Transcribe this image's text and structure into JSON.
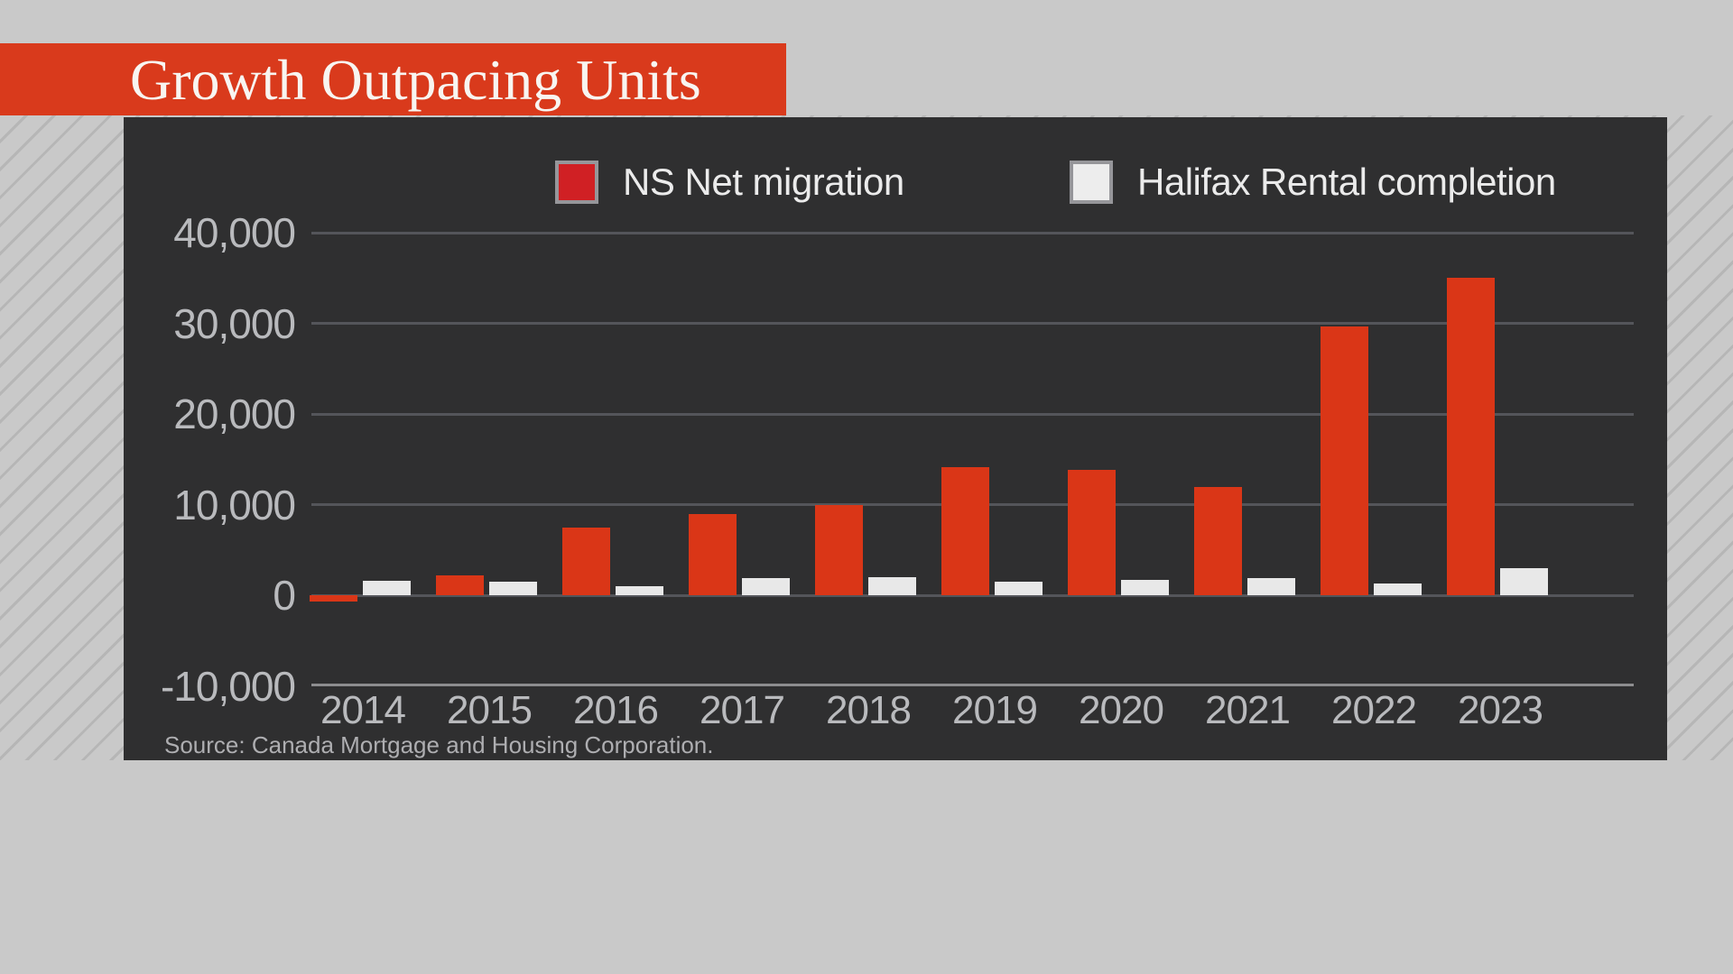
{
  "banner": {
    "title": "Growth Outpacing Units",
    "background_color": "#d93a1c",
    "text_color": "#f8f5f1"
  },
  "legend": {
    "items": [
      {
        "label": "NS Net migration",
        "swatch_color": "#d02024",
        "swatch_border": "#96969a"
      },
      {
        "label": "Halifax Rental completion",
        "swatch_color": "#ededed",
        "swatch_border": "#96969a"
      }
    ]
  },
  "source": "Source: Canada Mortgage and Housing Corporation.",
  "colors": {
    "page_background": "#c9c9c9",
    "hatch_line": "#b6b6b6",
    "panel_background": "#2f2f30",
    "gridline": "#54555a",
    "bottom_axis_line": "#8d8d8f",
    "axis_text": "#b9babd",
    "bar_red": "#da3617",
    "bar_white": "#e8e8e8"
  },
  "chart_data": {
    "type": "bar",
    "categories": [
      "2014",
      "2015",
      "2016",
      "2017",
      "2018",
      "2019",
      "2020",
      "2021",
      "2022",
      "2023"
    ],
    "series": [
      {
        "name": "NS Net migration",
        "color": "#da3617",
        "values": [
          -700,
          2200,
          7500,
          9000,
          10000,
          14200,
          13900,
          12000,
          29700,
          35000
        ]
      },
      {
        "name": "Halifax Rental completion",
        "color": "#e8e8e8",
        "values": [
          1600,
          1500,
          1000,
          1900,
          2000,
          1500,
          1700,
          1900,
          1300,
          3000
        ]
      }
    ],
    "title": "Growth Outpacing Units",
    "xlabel": "",
    "ylabel": "",
    "ylim": [
      -10000,
      40000
    ],
    "yticks": [
      40000,
      30000,
      20000,
      10000,
      0,
      -10000
    ],
    "ytick_labels": [
      "40,000",
      "30,000",
      "20,000",
      "10,000",
      "0",
      "-10,000"
    ],
    "grid": true,
    "legend_position": "top"
  }
}
